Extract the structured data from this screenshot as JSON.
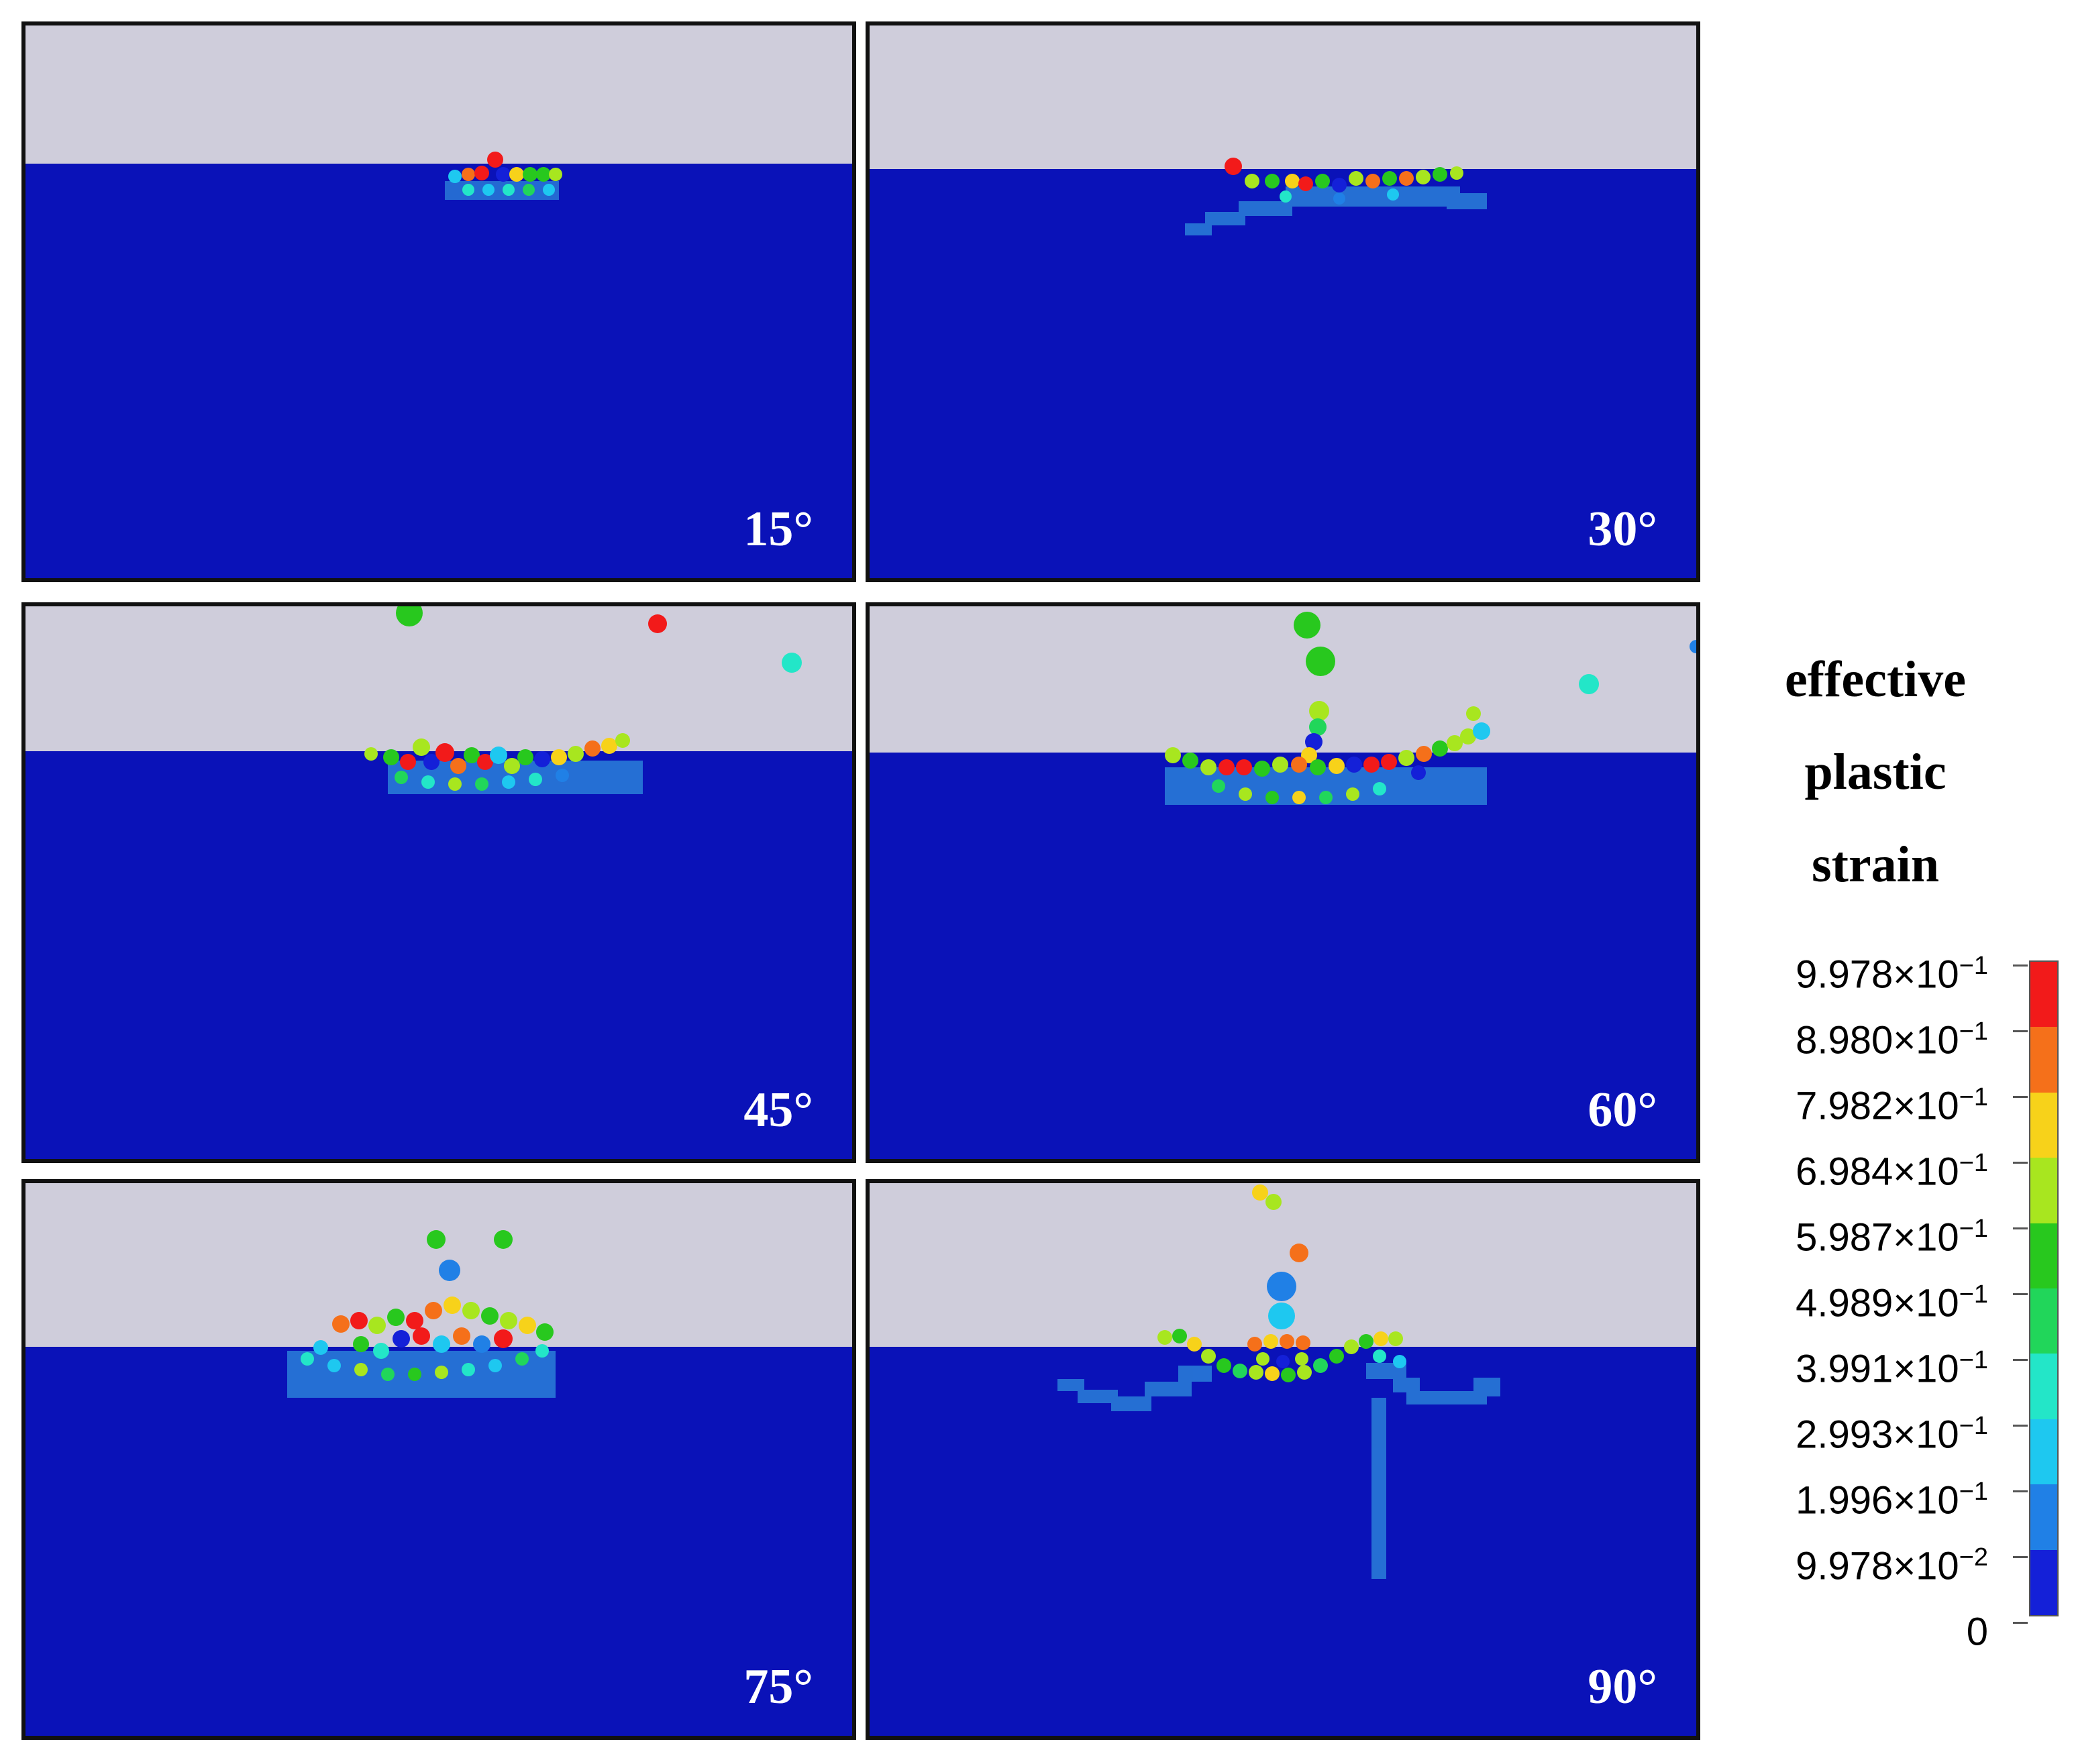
{
  "panels": [
    {
      "label": "15°"
    },
    {
      "label": "30°"
    },
    {
      "label": "45°"
    },
    {
      "label": "60°"
    },
    {
      "label": "75°"
    },
    {
      "label": "90°"
    }
  ],
  "legend": {
    "title_lines": [
      "effective",
      "plastic",
      "strain"
    ],
    "ticks": [
      {
        "mantissa": "9.978",
        "times": "×",
        "base": "10",
        "exp": "−1"
      },
      {
        "mantissa": "8.980",
        "times": "×",
        "base": "10",
        "exp": "−1"
      },
      {
        "mantissa": "7.982",
        "times": "×",
        "base": "10",
        "exp": "−1"
      },
      {
        "mantissa": "6.984",
        "times": "×",
        "base": "10",
        "exp": "−1"
      },
      {
        "mantissa": "5.987",
        "times": "×",
        "base": "10",
        "exp": "−1"
      },
      {
        "mantissa": "4.989",
        "times": "×",
        "base": "10",
        "exp": "−1"
      },
      {
        "mantissa": "3.991",
        "times": "×",
        "base": "10",
        "exp": "−1"
      },
      {
        "mantissa": "2.993",
        "times": "×",
        "base": "10",
        "exp": "−1"
      },
      {
        "mantissa": "1.996",
        "times": "×",
        "base": "10",
        "exp": "−1"
      },
      {
        "mantissa": "9.978",
        "times": "×",
        "base": "10",
        "exp": "−2"
      },
      {
        "mantissa": "0",
        "times": "",
        "base": "",
        "exp": ""
      }
    ],
    "colors": [
      "#f21a1a",
      "#f5701a",
      "#f7d21a",
      "#a8e61f",
      "#28c81e",
      "#21d65a",
      "#23e6c8",
      "#1ec8f0",
      "#2080e6",
      "#1420d8"
    ]
  },
  "colors": {
    "sky": "#cfcddb",
    "water": "#0a12b8",
    "frame": "#111111"
  }
}
